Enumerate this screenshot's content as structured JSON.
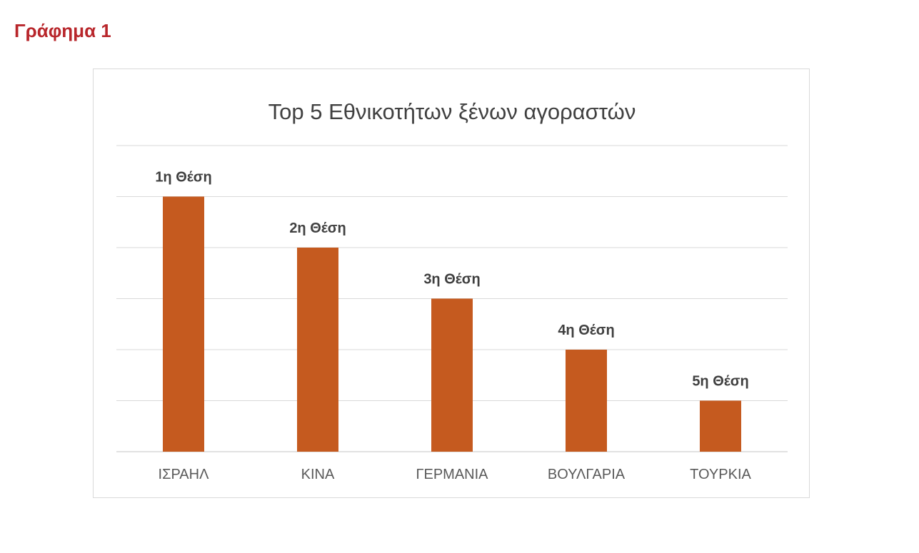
{
  "caption": "Γράφημα 1",
  "colors": {
    "bar": "#C55A1F",
    "grid": "#d9d9d9",
    "caption": "#b8262b"
  },
  "chart_data": {
    "type": "bar",
    "title": "Top 5 Εθνικοτήτων ξένων αγοραστών",
    "xlabel": "",
    "ylabel": "",
    "categories": [
      "ΙΣΡΑΗΛ",
      "ΚΙΝΑ",
      "ΓΕΡΜΑΝΙΑ",
      "ΒΟΥΛΓΑΡΙΑ",
      "ΤΟΥΡΚΙΑ"
    ],
    "values": [
      5,
      4,
      3,
      2,
      1
    ],
    "data_labels": [
      "1η Θέση",
      "2η Θέση",
      "3η Θέση",
      "4η Θέση",
      "5η Θέση"
    ],
    "ylim": [
      0,
      6
    ],
    "grid": true,
    "legend": "none"
  }
}
